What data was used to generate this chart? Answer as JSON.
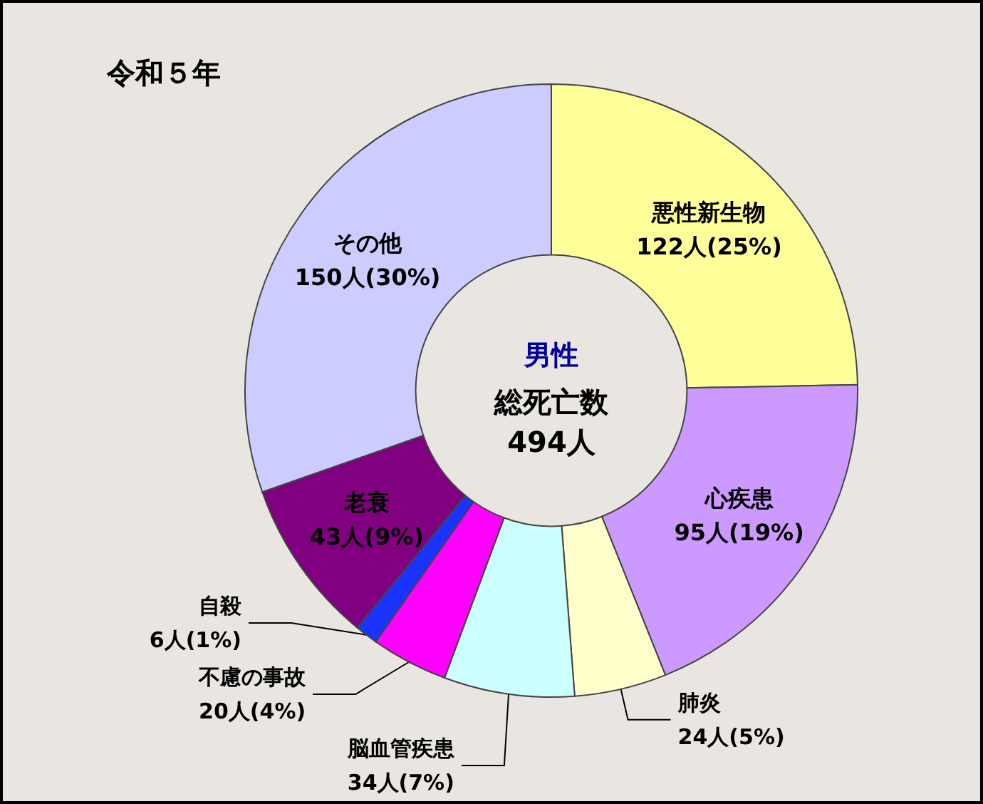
{
  "chart_data": {
    "type": "donut",
    "title": "令和５年",
    "categories": [
      "悪性新生物",
      "心疾患",
      "肺炎",
      "脳血管疾患",
      "不慮の事故",
      "自殺",
      "老衰",
      "その他"
    ],
    "values": [
      122,
      95,
      24,
      34,
      20,
      6,
      43,
      150
    ],
    "value_labels": [
      "122人(25%)",
      "95人(19%)",
      "24人(5%)",
      "34人(7%)",
      "20人(4%)",
      "6人(1%)",
      "43人(9%)",
      "150人(30%)"
    ],
    "colors": [
      "#ffff99",
      "#cc99ff",
      "#ffffcc",
      "#ccffff",
      "#ff00ff",
      "#1a33ff",
      "#800080",
      "#ccccff"
    ],
    "annotations": [
      "男性",
      "総死亡数",
      "494人"
    ],
    "legend": false
  }
}
